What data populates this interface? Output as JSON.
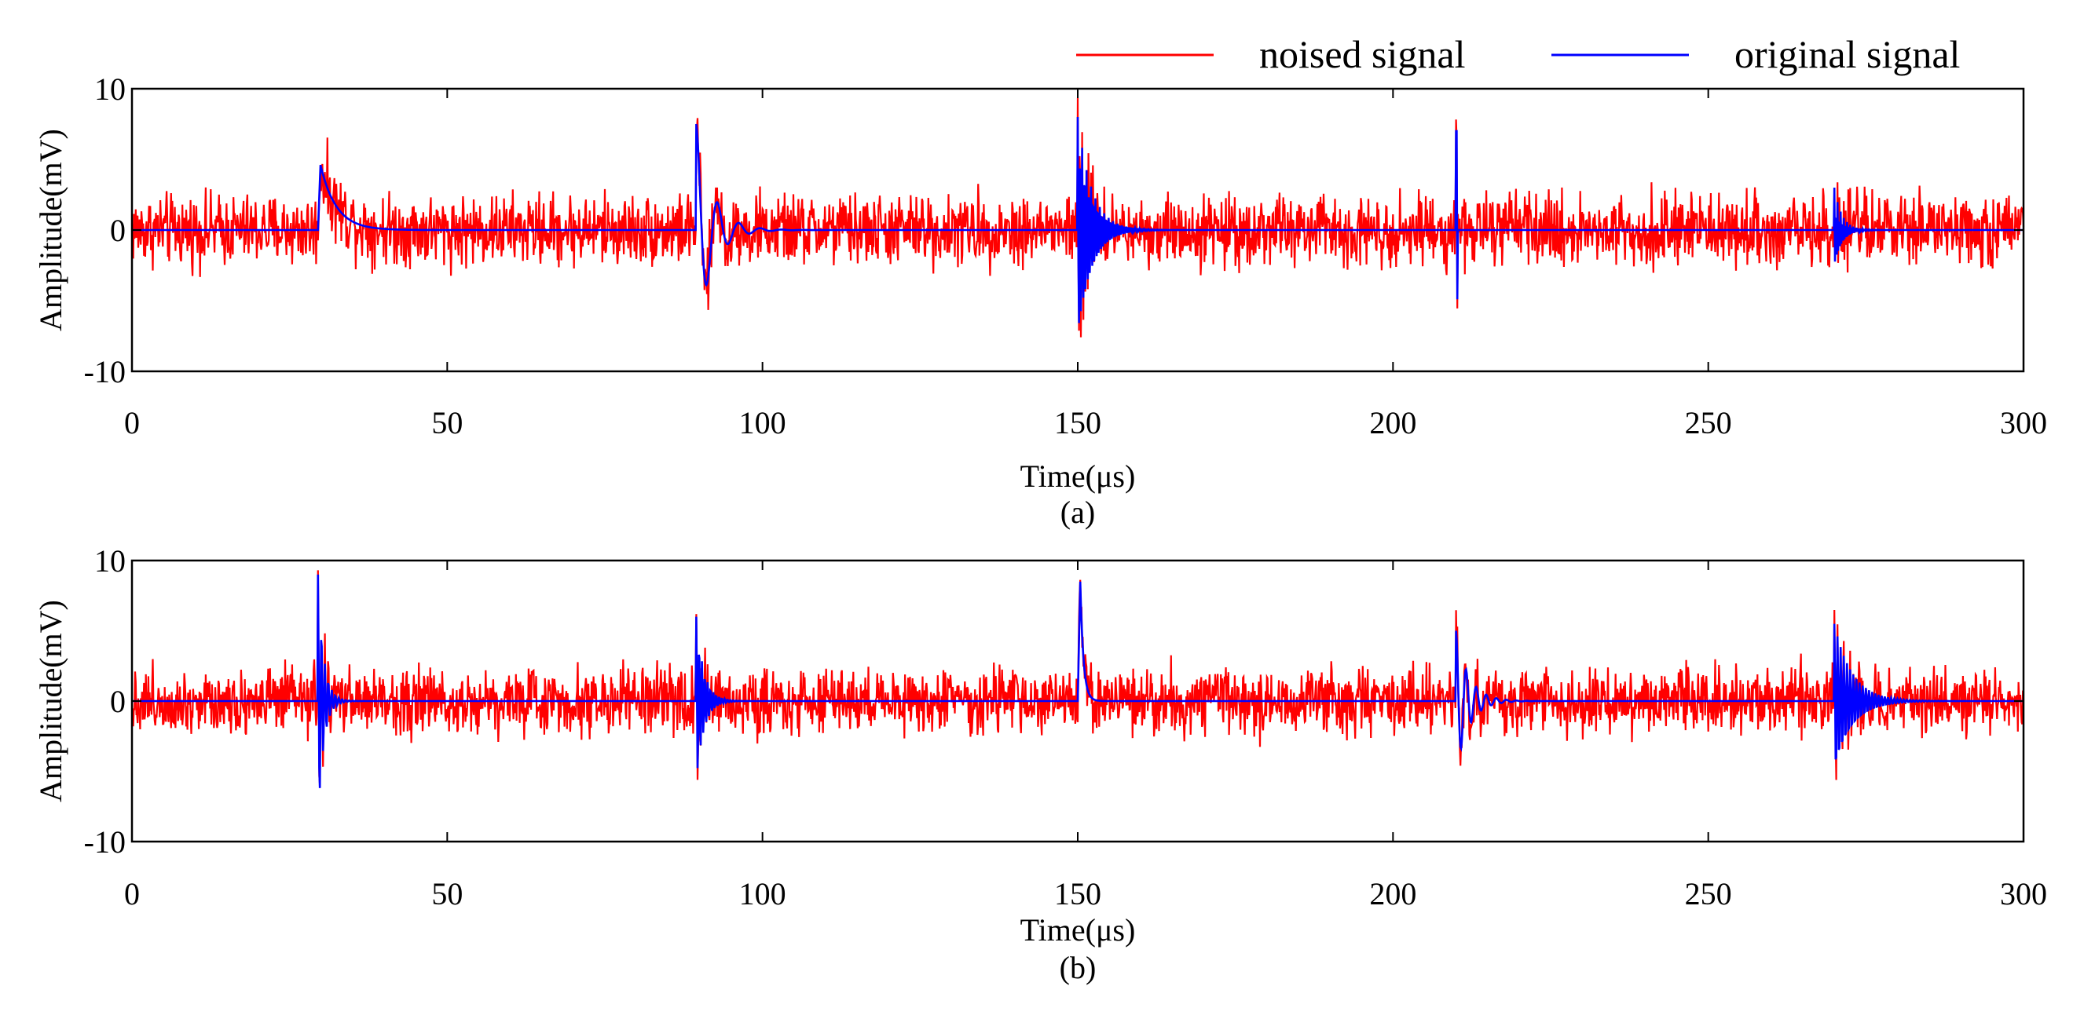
{
  "legend": [
    {
      "label": "noised signal",
      "color": "#ff0000"
    },
    {
      "label": "original signal",
      "color": "#0000ff"
    }
  ],
  "chart_data": [
    {
      "type": "line",
      "caption": "(a)",
      "xlabel": "Time(μs)",
      "ylabel": "Amplitude(mV)",
      "xlim": [
        0,
        300
      ],
      "ylim": [
        -10,
        10
      ],
      "xticks": [
        0,
        50,
        100,
        150,
        200,
        250,
        300
      ],
      "yticks": [
        -10,
        0,
        10
      ],
      "noise_amplitude_mV": 3.2,
      "series": [
        {
          "name": "noised signal",
          "color": "#ff0000",
          "kind": "original signal plus noise"
        },
        {
          "name": "original signal",
          "color": "#0000ff",
          "kind": "pulses on zero baseline"
        }
      ],
      "pulses": [
        {
          "t0": 29.5,
          "shape": "exp",
          "amp": 4.6,
          "tau": 2.5
        },
        {
          "t0": 89.5,
          "shape": "osc",
          "amp": 7.5,
          "tau": 2.5,
          "period": 3.4
        },
        {
          "t0": 150.0,
          "shape": "osc",
          "amp": 8.0,
          "tau": 2.2,
          "period": 0.35
        },
        {
          "t0": 210.0,
          "shape": "spike",
          "amp": 7.0
        },
        {
          "t0": 270.0,
          "shape": "osc",
          "amp": 3.0,
          "tau": 1.2,
          "period": 0.25
        }
      ]
    },
    {
      "type": "line",
      "caption": "(b)",
      "xlabel": "Time(μs)",
      "ylabel": "Amplitude(mV)",
      "xlim": [
        0,
        300
      ],
      "ylim": [
        -10,
        10
      ],
      "xticks": [
        0,
        50,
        100,
        150,
        200,
        250,
        300
      ],
      "yticks": [
        -10,
        0,
        10
      ],
      "noise_amplitude_mV": 3.0,
      "series": [
        {
          "name": "noised signal",
          "color": "#ff0000",
          "kind": "original signal plus noise"
        },
        {
          "name": "original signal",
          "color": "#0000ff",
          "kind": "pulses on zero baseline"
        }
      ],
      "pulses": [
        {
          "t0": 29.5,
          "shape": "osc",
          "amp": 9.0,
          "tau": 0.9,
          "period": 0.55
        },
        {
          "t0": 89.5,
          "shape": "osc",
          "amp": 6.0,
          "tau": 1.2,
          "period": 0.45
        },
        {
          "t0": 150.0,
          "shape": "exp",
          "amp": 8.5,
          "tau": 0.5
        },
        {
          "t0": 210.0,
          "shape": "osc",
          "amp": 5.0,
          "tau": 2.0,
          "period": 1.6
        },
        {
          "t0": 270.0,
          "shape": "osc",
          "amp": 5.5,
          "tau": 2.8,
          "period": 0.5
        }
      ]
    }
  ]
}
